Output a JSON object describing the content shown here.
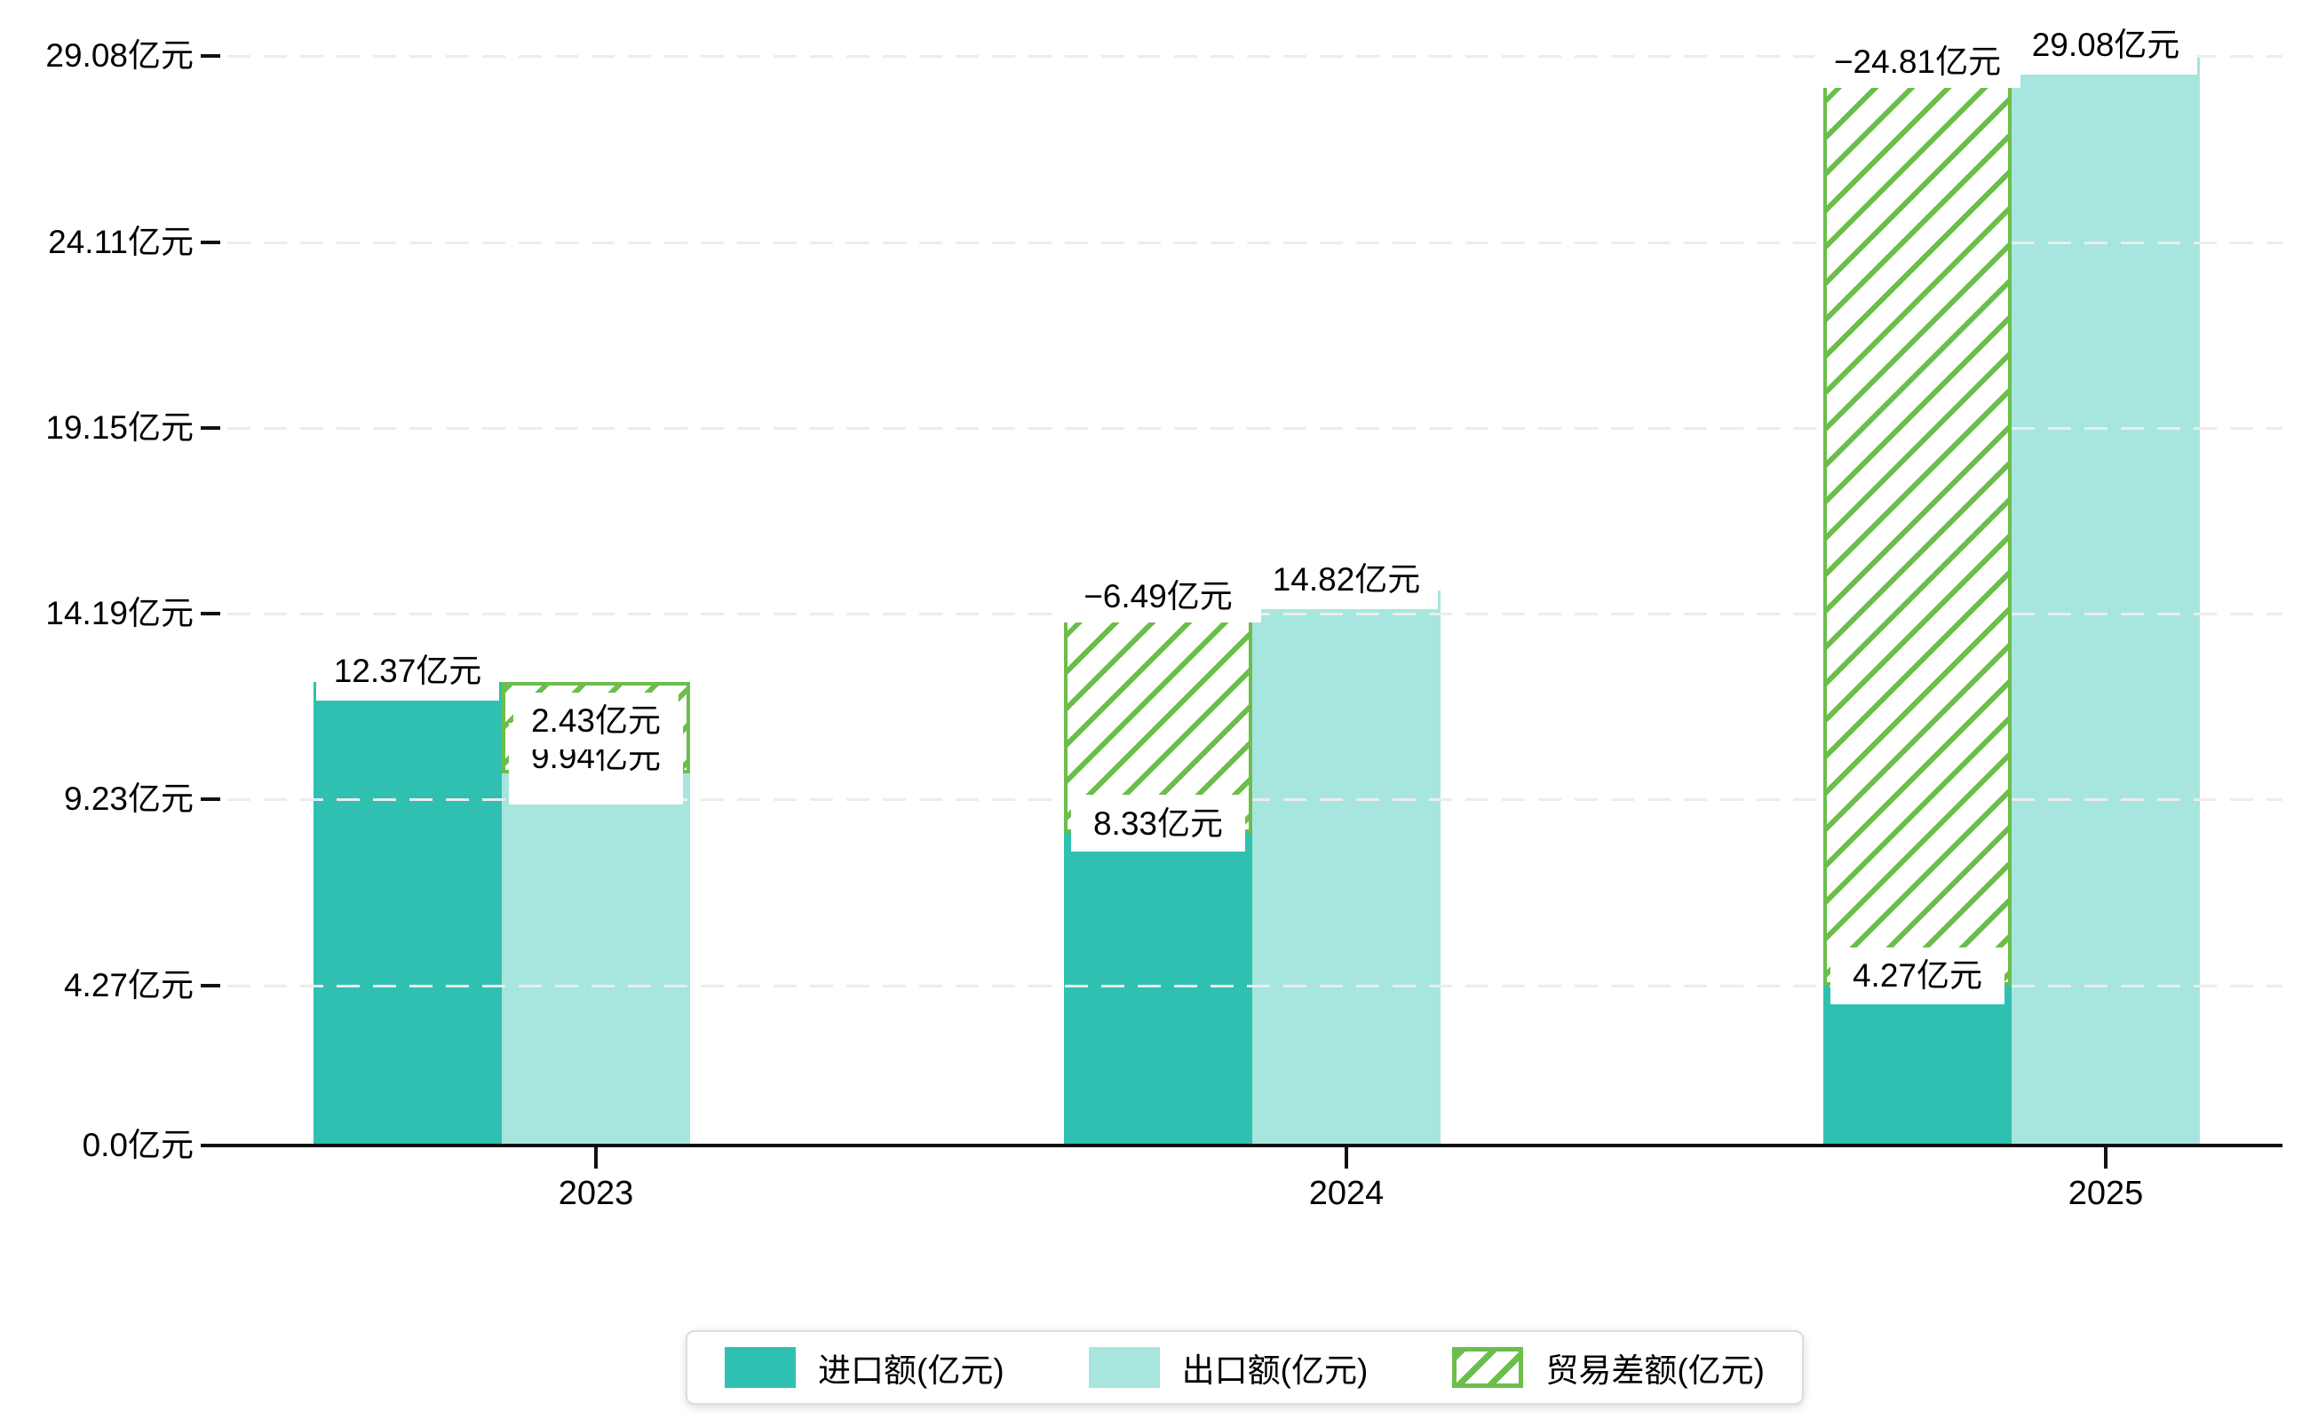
{
  "chart_data": {
    "type": "bar",
    "categories": [
      "2023",
      "2024",
      "2025"
    ],
    "series": [
      {
        "name": "进口额(亿元)",
        "values": [
          12.37,
          8.33,
          4.27
        ],
        "color": "#2fc0b2",
        "style": "solid"
      },
      {
        "name": "出口额(亿元)",
        "values": [
          9.94,
          14.82,
          29.08
        ],
        "color": "#a6e6de",
        "style": "solid"
      },
      {
        "name": "贸易差额(亿元)",
        "values": [
          2.43,
          -6.49,
          -24.81
        ],
        "color": "#6cbe4b",
        "style": "hatched-outline"
      }
    ],
    "bar_labels": {
      "import": [
        "12.37亿元",
        "8.33亿元",
        "4.27亿元"
      ],
      "export": [
        "9.94亿元",
        "14.82亿元",
        "29.08亿元"
      ],
      "balance": [
        "2.43亿元",
        "−6.49亿元",
        "−24.81亿元"
      ]
    },
    "unit": "亿元",
    "y_axis": {
      "ticks": [
        0.0,
        4.27,
        9.23,
        14.19,
        19.15,
        24.11,
        29.08
      ],
      "labels": [
        "0.0亿元",
        "4.27亿元",
        "9.23亿元",
        "14.19亿元",
        "19.15亿元",
        "24.11亿元",
        "29.08亿元"
      ]
    },
    "ylim": [
      0,
      30.6
    ],
    "grid": "horizontal-dashed",
    "legend_position": "bottom-center"
  },
  "legend": {
    "items": [
      {
        "label": "进口额(亿元)",
        "swatch": "import-solid"
      },
      {
        "label": "出口额(亿元)",
        "swatch": "export-solid"
      },
      {
        "label": "贸易差额(亿元)",
        "swatch": "balance-hatched"
      }
    ]
  },
  "colors": {
    "import": "#2fc0b2",
    "export": "#a6e6de",
    "balance_green": "#6cbe4b",
    "axis": "#111111",
    "grid": "#ececec",
    "text": "#000000",
    "legend_border": "#dcdcdc",
    "background": "#ffffff"
  }
}
